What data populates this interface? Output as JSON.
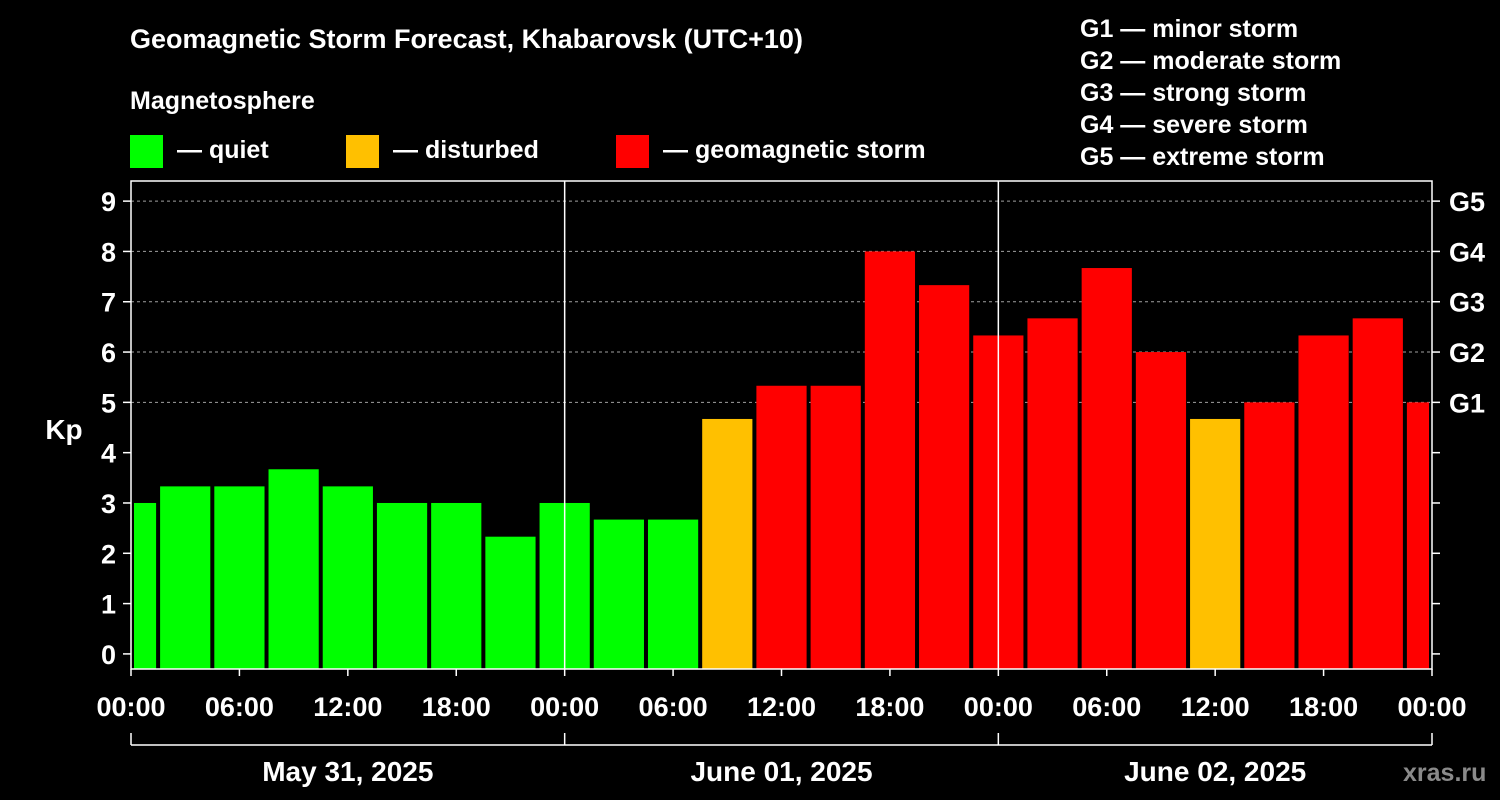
{
  "chart_data": {
    "type": "bar",
    "title": "Geomagnetic Storm Forecast, Khabarovsk (UTC+10)",
    "ylabel": "Kp",
    "ylim": [
      -0.3,
      9.4
    ],
    "y_ticks": [
      "0",
      "1",
      "2",
      "3",
      "4",
      "5",
      "6",
      "7",
      "8",
      "9"
    ],
    "x_range_hours": [
      0,
      72
    ],
    "x_tick_labels": [
      "00:00",
      "06:00",
      "12:00",
      "18:00",
      "00:00",
      "06:00",
      "12:00",
      "18:00",
      "00:00",
      "06:00",
      "12:00",
      "18:00",
      "00:00"
    ],
    "dates": [
      "May 31, 2025",
      "June 01, 2025",
      "June 02, 2025"
    ],
    "legend_title": "Magnetosphere",
    "legend": [
      {
        "key": "quiet",
        "label": "— quiet",
        "color": "#00ff00"
      },
      {
        "key": "disturbed",
        "label": "— disturbed",
        "color": "#ffc000"
      },
      {
        "key": "storm",
        "label": "— geomagnetic storm",
        "color": "#ff0000"
      }
    ],
    "storm_scale": [
      "G1 — minor storm",
      "G2 — moderate storm",
      "G3 — strong storm",
      "G4 — severe storm",
      "G5 — extreme storm"
    ],
    "g_levels": [
      {
        "label": "G1",
        "kp": 5
      },
      {
        "label": "G2",
        "kp": 6
      },
      {
        "label": "G3",
        "kp": 7
      },
      {
        "label": "G4",
        "kp": 8
      },
      {
        "label": "G5",
        "kp": 9
      }
    ],
    "bars": [
      {
        "start": "May 31 00:00",
        "end": "May 31 01:30",
        "kp": 3.0,
        "level": "quiet"
      },
      {
        "start": "May 31 01:30",
        "end": "May 31 04:30",
        "kp": 3.33,
        "level": "quiet"
      },
      {
        "start": "May 31 04:30",
        "end": "May 31 07:30",
        "kp": 3.33,
        "level": "quiet"
      },
      {
        "start": "May 31 07:30",
        "end": "May 31 10:30",
        "kp": 3.67,
        "level": "quiet"
      },
      {
        "start": "May 31 10:30",
        "end": "May 31 13:30",
        "kp": 3.33,
        "level": "quiet"
      },
      {
        "start": "May 31 13:30",
        "end": "May 31 16:30",
        "kp": 3.0,
        "level": "quiet"
      },
      {
        "start": "May 31 16:30",
        "end": "May 31 19:30",
        "kp": 3.0,
        "level": "quiet"
      },
      {
        "start": "May 31 19:30",
        "end": "May 31 22:30",
        "kp": 2.33,
        "level": "quiet"
      },
      {
        "start": "May 31 22:30",
        "end": "Jun 01 01:30",
        "kp": 3.0,
        "level": "quiet"
      },
      {
        "start": "Jun 01 01:30",
        "end": "Jun 01 04:30",
        "kp": 2.67,
        "level": "quiet"
      },
      {
        "start": "Jun 01 04:30",
        "end": "Jun 01 07:30",
        "kp": 2.67,
        "level": "quiet"
      },
      {
        "start": "Jun 01 07:30",
        "end": "Jun 01 10:30",
        "kp": 4.67,
        "level": "disturbed"
      },
      {
        "start": "Jun 01 10:30",
        "end": "Jun 01 13:30",
        "kp": 5.33,
        "level": "storm"
      },
      {
        "start": "Jun 01 13:30",
        "end": "Jun 01 16:30",
        "kp": 5.33,
        "level": "storm"
      },
      {
        "start": "Jun 01 16:30",
        "end": "Jun 01 19:30",
        "kp": 8.0,
        "level": "storm"
      },
      {
        "start": "Jun 01 19:30",
        "end": "Jun 01 22:30",
        "kp": 7.33,
        "level": "storm"
      },
      {
        "start": "Jun 01 22:30",
        "end": "Jun 02 01:30",
        "kp": 6.33,
        "level": "storm"
      },
      {
        "start": "Jun 02 01:30",
        "end": "Jun 02 04:30",
        "kp": 6.67,
        "level": "storm"
      },
      {
        "start": "Jun 02 04:30",
        "end": "Jun 02 07:30",
        "kp": 7.67,
        "level": "storm"
      },
      {
        "start": "Jun 02 07:30",
        "end": "Jun 02 10:30",
        "kp": 6.0,
        "level": "storm"
      },
      {
        "start": "Jun 02 10:30",
        "end": "Jun 02 13:30",
        "kp": 4.67,
        "level": "disturbed"
      },
      {
        "start": "Jun 02 13:30",
        "end": "Jun 02 16:30",
        "kp": 5.0,
        "level": "storm"
      },
      {
        "start": "Jun 02 16:30",
        "end": "Jun 02 19:30",
        "kp": 6.33,
        "level": "storm"
      },
      {
        "start": "Jun 02 19:30",
        "end": "Jun 02 22:30",
        "kp": 6.67,
        "level": "storm"
      },
      {
        "start": "Jun 02 22:30",
        "end": "Jun 03 00:00",
        "kp": 5.0,
        "level": "storm"
      }
    ],
    "grid": "dashed horizontal lines at each integer Kp"
  },
  "watermark": "xras.ru"
}
